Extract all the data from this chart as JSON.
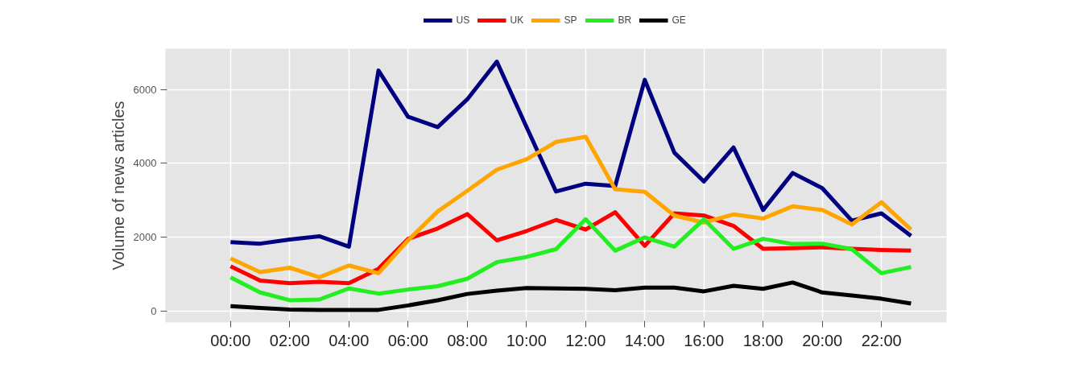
{
  "chart_data": {
    "type": "line",
    "ylabel": "Volume of news articles",
    "x": [
      0,
      1,
      2,
      3,
      4,
      5,
      6,
      7,
      8,
      9,
      10,
      11,
      12,
      13,
      14,
      15,
      16,
      17,
      18,
      19,
      20,
      21,
      22,
      23
    ],
    "xlim": [
      -2.2,
      24.2
    ],
    "ylim": [
      -300,
      7100
    ],
    "xticks": [
      {
        "value": 0,
        "label": "00:00"
      },
      {
        "value": 2,
        "label": "02:00"
      },
      {
        "value": 4,
        "label": "04:00"
      },
      {
        "value": 6,
        "label": "06:00"
      },
      {
        "value": 8,
        "label": "08:00"
      },
      {
        "value": 10,
        "label": "10:00"
      },
      {
        "value": 12,
        "label": "12:00"
      },
      {
        "value": 14,
        "label": "14:00"
      },
      {
        "value": 16,
        "label": "16:00"
      },
      {
        "value": 18,
        "label": "18:00"
      },
      {
        "value": 20,
        "label": "20:00"
      },
      {
        "value": 22,
        "label": "22:00"
      }
    ],
    "yticks": [
      0,
      2000,
      4000,
      6000
    ],
    "grid": true,
    "legend": "top",
    "line_style": "solid",
    "series": [
      {
        "name": "US",
        "color": "#000080",
        "values": [
          1870,
          1830,
          1940,
          2030,
          1750,
          6510,
          5260,
          4980,
          5730,
          6750,
          4990,
          3240,
          3450,
          3390,
          6260,
          4290,
          3510,
          4430,
          2740,
          3740,
          3330,
          2450,
          2650,
          2040
        ]
      },
      {
        "name": "UK",
        "color": "#ff0000",
        "values": [
          1220,
          830,
          760,
          800,
          760,
          1150,
          1960,
          2240,
          2630,
          1920,
          2170,
          2470,
          2210,
          2680,
          1770,
          2650,
          2590,
          2310,
          1690,
          1710,
          1730,
          1690,
          1660,
          1640
        ]
      },
      {
        "name": "SP",
        "color": "#ffa500",
        "values": [
          1430,
          1060,
          1180,
          920,
          1240,
          1030,
          1920,
          2700,
          3260,
          3830,
          4110,
          4580,
          4720,
          3300,
          3230,
          2590,
          2400,
          2620,
          2510,
          2840,
          2740,
          2350,
          2950,
          2210
        ]
      },
      {
        "name": "BR",
        "color": "#22ee22",
        "values": [
          920,
          510,
          300,
          320,
          620,
          480,
          590,
          680,
          880,
          1330,
          1470,
          1680,
          2490,
          1640,
          2000,
          1750,
          2490,
          1690,
          1960,
          1820,
          1830,
          1680,
          1030,
          1200
        ]
      },
      {
        "name": "GE",
        "color": "#000000",
        "values": [
          140,
          90,
          50,
          40,
          40,
          40,
          160,
          300,
          470,
          560,
          630,
          620,
          610,
          570,
          640,
          640,
          540,
          690,
          610,
          780,
          510,
          430,
          340,
          210
        ]
      }
    ]
  }
}
